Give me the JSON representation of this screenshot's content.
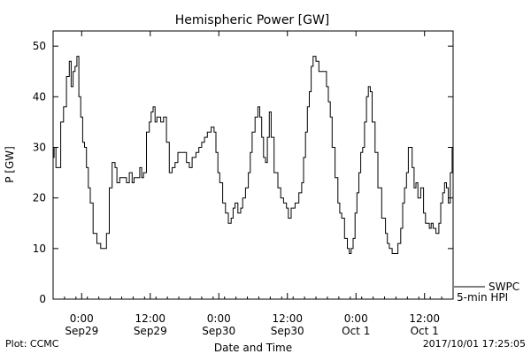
{
  "chart_data": {
    "type": "line",
    "title": "Hemispheric Power [GW]",
    "xlabel": "Date and Time",
    "ylabel": "P [GW]",
    "ylim": [
      0,
      53
    ],
    "yticks": [
      0,
      10,
      20,
      30,
      40,
      50
    ],
    "xlim": [
      "2017-09-28T19:00",
      "2017-10-01T17:00"
    ],
    "xticks": [
      {
        "time": "2017-09-29T00:00",
        "label1": "0:00",
        "label2": "Sep29"
      },
      {
        "time": "2017-09-29T12:00",
        "label1": "12:00",
        "label2": "Sep29"
      },
      {
        "time": "2017-09-30T00:00",
        "label1": "0:00",
        "label2": "Sep30"
      },
      {
        "time": "2017-09-30T12:00",
        "label1": "12:00",
        "label2": "Sep30"
      },
      {
        "time": "2017-10-01T00:00",
        "label1": "0:00",
        "label2": "Oct 1"
      },
      {
        "time": "2017-10-01T12:00",
        "label1": "12:00",
        "label2": "Oct 1"
      }
    ],
    "grid": false,
    "legend": {
      "position": "right-bottom-outside",
      "entries": [
        "SWPC",
        "5-min HPI"
      ]
    },
    "line_color": "#000000",
    "series": [
      {
        "name": "SWPC",
        "x": [
          "2017-09-28T19:00",
          "2017-09-28T19:20",
          "2017-09-28T19:40",
          "2017-09-28T20:00",
          "2017-09-28T20:40",
          "2017-09-28T21:00",
          "2017-09-28T21:40",
          "2017-09-28T22:00",
          "2017-09-28T22:20",
          "2017-09-28T22:40",
          "2017-09-28T23:00",
          "2017-09-28T23:20",
          "2017-09-28T23:40",
          "2017-09-29T00:00",
          "2017-09-29T00:20",
          "2017-09-29T00:40",
          "2017-09-29T01:00",
          "2017-09-29T01:20",
          "2017-09-29T01:40",
          "2017-09-29T02:20",
          "2017-09-29T03:00",
          "2017-09-29T03:40",
          "2017-09-29T04:00",
          "2017-09-29T04:40",
          "2017-09-29T05:00",
          "2017-09-29T05:40",
          "2017-09-29T06:00",
          "2017-09-29T06:20",
          "2017-09-29T07:00",
          "2017-09-29T07:40",
          "2017-09-29T08:00",
          "2017-09-29T08:40",
          "2017-09-29T09:00",
          "2017-09-29T09:20",
          "2017-09-29T10:00",
          "2017-09-29T10:20",
          "2017-09-29T10:40",
          "2017-09-29T11:00",
          "2017-09-29T11:40",
          "2017-09-29T12:00",
          "2017-09-29T12:20",
          "2017-09-29T12:40",
          "2017-09-29T13:00",
          "2017-09-29T13:20",
          "2017-09-29T13:40",
          "2017-09-29T14:00",
          "2017-09-29T14:40",
          "2017-09-29T15:00",
          "2017-09-29T15:40",
          "2017-09-29T16:00",
          "2017-09-29T16:40",
          "2017-09-29T17:00",
          "2017-09-29T18:00",
          "2017-09-29T18:40",
          "2017-09-29T19:00",
          "2017-09-29T19:40",
          "2017-09-29T20:20",
          "2017-09-29T20:40",
          "2017-09-29T21:20",
          "2017-09-29T21:40",
          "2017-09-29T22:20",
          "2017-09-29T23:00",
          "2017-09-29T23:20",
          "2017-09-29T23:40",
          "2017-09-30T00:00",
          "2017-09-30T00:20",
          "2017-09-30T01:00",
          "2017-09-30T01:20",
          "2017-09-30T02:00",
          "2017-09-30T02:20",
          "2017-09-30T02:40",
          "2017-09-30T03:00",
          "2017-09-30T03:40",
          "2017-09-30T04:00",
          "2017-09-30T04:20",
          "2017-09-30T05:00",
          "2017-09-30T05:20",
          "2017-09-30T05:40",
          "2017-09-30T06:00",
          "2017-09-30T06:40",
          "2017-09-30T07:00",
          "2017-09-30T07:20",
          "2017-09-30T07:40",
          "2017-09-30T08:00",
          "2017-09-30T08:20",
          "2017-09-30T08:40",
          "2017-09-30T09:00",
          "2017-09-30T09:20",
          "2017-09-30T10:00",
          "2017-09-30T10:40",
          "2017-09-30T11:00",
          "2017-09-30T11:40",
          "2017-09-30T12:00",
          "2017-09-30T12:20",
          "2017-09-30T13:00",
          "2017-09-30T13:40",
          "2017-09-30T14:20",
          "2017-09-30T14:40",
          "2017-09-30T15:00",
          "2017-09-30T15:20",
          "2017-09-30T15:40",
          "2017-09-30T16:00",
          "2017-09-30T16:20",
          "2017-09-30T16:40",
          "2017-09-30T17:20",
          "2017-09-30T17:40",
          "2017-09-30T18:20",
          "2017-09-30T18:40",
          "2017-09-30T19:00",
          "2017-09-30T19:20",
          "2017-09-30T19:40",
          "2017-09-30T20:00",
          "2017-09-30T20:40",
          "2017-09-30T21:00",
          "2017-09-30T21:20",
          "2017-09-30T21:40",
          "2017-09-30T22:20",
          "2017-09-30T22:40",
          "2017-09-30T23:00",
          "2017-09-30T23:20",
          "2017-09-30T23:40",
          "2017-10-01T00:00",
          "2017-10-01T00:20",
          "2017-10-01T00:40",
          "2017-10-01T01:00",
          "2017-10-01T01:20",
          "2017-10-01T01:40",
          "2017-10-01T02:00",
          "2017-10-01T02:20",
          "2017-10-01T02:40",
          "2017-10-01T03:00",
          "2017-10-01T03:40",
          "2017-10-01T04:00",
          "2017-10-01T05:00",
          "2017-10-01T05:20",
          "2017-10-01T05:40",
          "2017-10-01T06:00",
          "2017-10-01T06:40",
          "2017-10-01T07:00",
          "2017-10-01T07:40",
          "2017-10-01T08:00",
          "2017-10-01T08:20",
          "2017-10-01T08:40",
          "2017-10-01T09:00",
          "2017-10-01T09:20",
          "2017-10-01T09:40",
          "2017-10-01T10:00",
          "2017-10-01T10:20",
          "2017-10-01T10:40",
          "2017-10-01T11:00",
          "2017-10-01T11:40",
          "2017-10-01T12:00",
          "2017-10-01T12:20",
          "2017-10-01T12:40",
          "2017-10-01T13:00",
          "2017-10-01T13:20",
          "2017-10-01T13:40",
          "2017-10-01T14:20",
          "2017-10-01T14:40",
          "2017-10-01T15:00",
          "2017-10-01T15:20",
          "2017-10-01T15:40",
          "2017-10-01T16:00",
          "2017-10-01T16:20",
          "2017-10-01T16:40",
          "2017-10-01T17:00"
        ],
        "y": [
          28,
          30,
          26,
          26,
          35,
          38,
          44,
          47,
          42,
          45,
          46,
          48,
          40,
          36,
          31,
          30,
          26,
          22,
          19,
          13,
          11,
          10,
          10,
          13,
          22,
          27,
          26,
          23,
          24,
          24,
          23,
          25,
          23,
          24,
          24,
          26,
          24,
          25,
          33,
          35,
          37,
          38,
          35,
          36,
          36,
          35,
          36,
          31,
          25,
          26,
          27,
          29,
          29,
          27,
          26,
          28,
          29,
          30,
          31,
          32,
          33,
          34,
          33,
          29,
          25,
          23,
          19,
          17,
          15,
          16,
          18,
          19,
          17,
          18,
          20,
          22,
          25,
          29,
          33,
          36,
          38,
          36,
          32,
          28,
          27,
          32,
          37,
          32,
          25,
          22,
          20,
          19,
          18,
          16,
          18,
          19,
          21,
          23,
          28,
          33,
          38,
          41,
          46,
          48,
          47,
          45,
          45,
          45,
          42,
          39,
          36,
          30,
          24,
          19,
          17,
          16,
          12,
          10,
          9,
          10,
          12,
          17,
          21,
          25,
          29,
          30,
          35,
          40,
          42,
          41,
          35,
          29,
          22,
          16,
          13,
          11,
          10,
          9,
          9,
          11,
          14,
          19,
          22,
          25,
          30,
          30,
          26,
          22,
          23,
          20,
          22,
          17,
          15,
          15,
          14,
          15,
          14,
          13,
          15,
          19,
          21,
          23,
          22,
          19,
          25,
          30
        ]
      }
    ]
  },
  "footer": {
    "left": "Plot: CCMC",
    "right": "2017/10/01 17:25:05"
  }
}
